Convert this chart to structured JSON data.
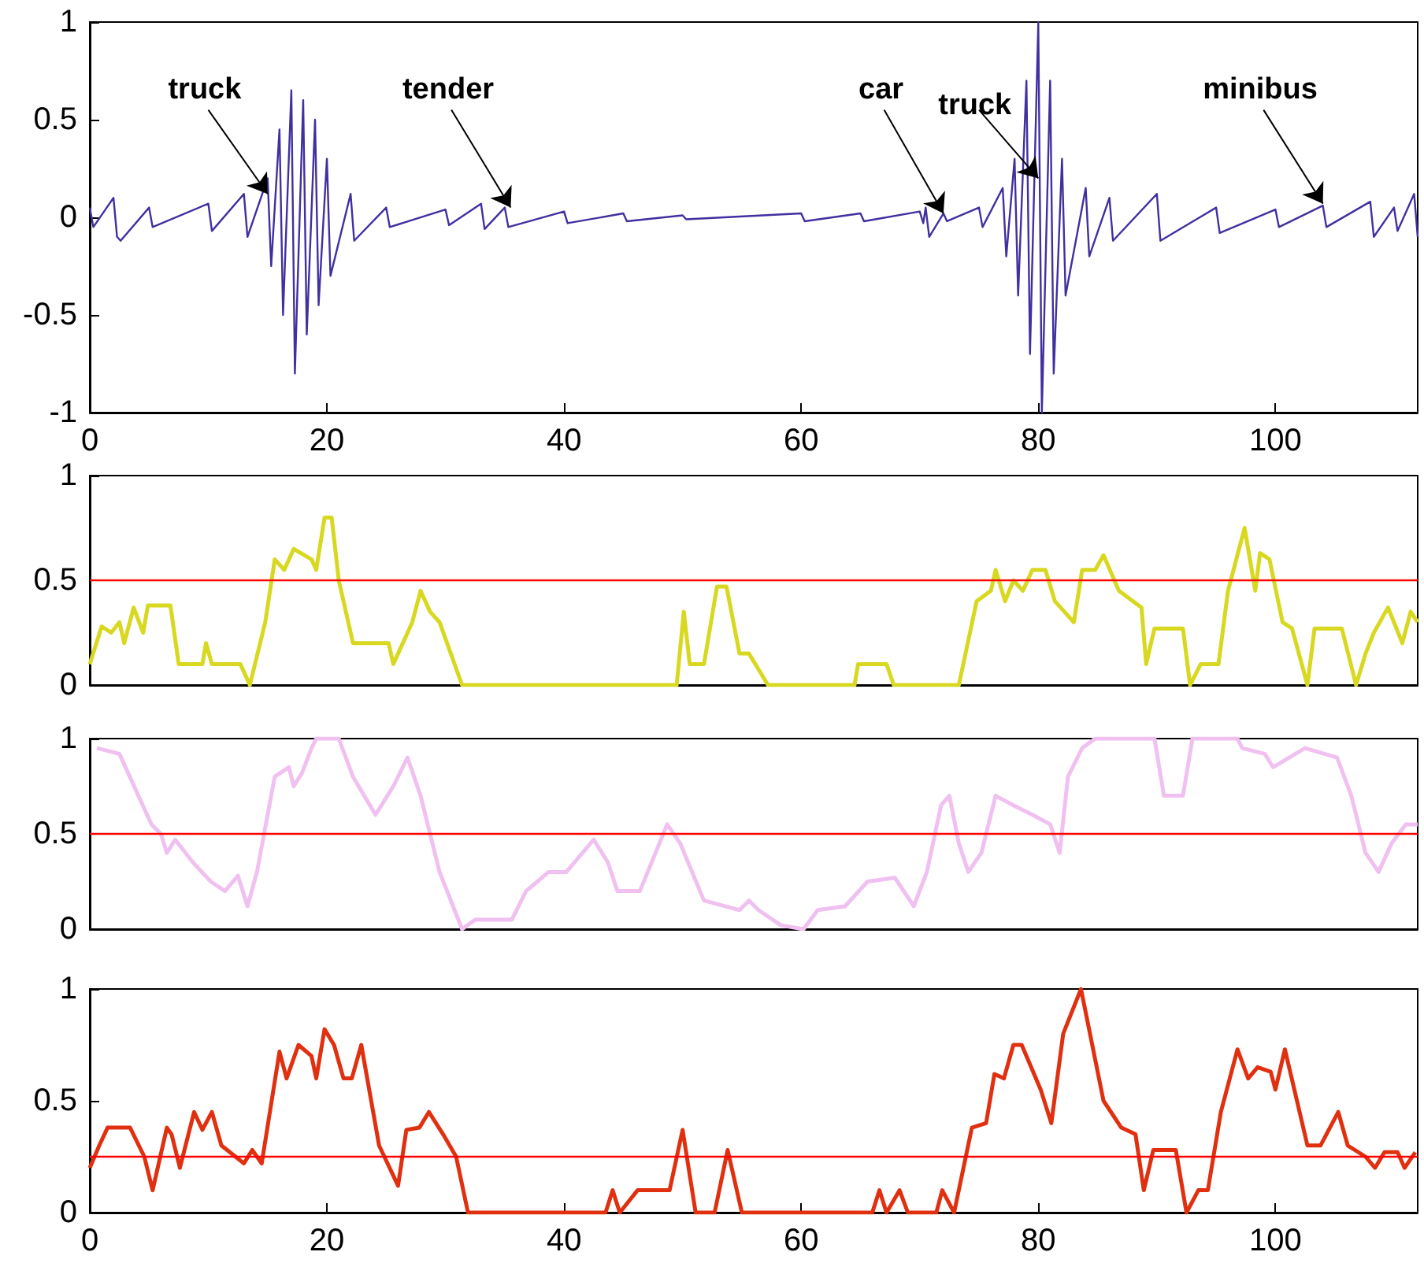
{
  "chart_data": [
    {
      "type": "line",
      "xlim": [
        0,
        112
      ],
      "xticks": [
        0,
        20,
        40,
        60,
        80,
        100
      ],
      "ylim": [
        -1,
        1
      ],
      "yticks": [
        -1,
        -0.5,
        0,
        0.5,
        1
      ],
      "series": [
        {
          "color": "#4030a0",
          "x": [
            0,
            0.3,
            2,
            2.3,
            2.6,
            5,
            5.3,
            10,
            10.3,
            13,
            13.3,
            15,
            15.3,
            16,
            16.3,
            17,
            17.3,
            18,
            18.3,
            19,
            19.3,
            20,
            20.3,
            22,
            22.3,
            25,
            25.3,
            30,
            30.3,
            33,
            33.3,
            35,
            35.3,
            40,
            40.3,
            45,
            45.3,
            50,
            50.3,
            60,
            60.3,
            65,
            65.3,
            70,
            70.3,
            70.5,
            70.8,
            72,
            72.3,
            75,
            75.3,
            77,
            77.3,
            78,
            78.3,
            79,
            79.3,
            80,
            80.3,
            81,
            81.3,
            82,
            82.3,
            84,
            84.3,
            86,
            86.3,
            90,
            90.3,
            95,
            95.3,
            100,
            100.3,
            104,
            104.3,
            108,
            108.3,
            110,
            110.3,
            111.7,
            112
          ],
          "values": [
            0.05,
            -0.05,
            0.1,
            -0.1,
            -0.12,
            0.05,
            -0.05,
            0.07,
            -0.07,
            0.12,
            -0.1,
            0.2,
            -0.25,
            0.45,
            -0.5,
            0.65,
            -0.8,
            0.6,
            -0.6,
            0.5,
            -0.45,
            0.3,
            -0.3,
            0.12,
            -0.12,
            0.05,
            -0.05,
            0.04,
            -0.04,
            0.07,
            -0.06,
            0.05,
            -0.05,
            0.03,
            -0.03,
            0.02,
            -0.02,
            0.01,
            -0.01,
            0.02,
            -0.02,
            0.02,
            -0.02,
            0.03,
            -0.03,
            0.05,
            -0.1,
            0.02,
            -0.02,
            0.05,
            -0.05,
            0.15,
            -0.2,
            0.3,
            -0.4,
            0.7,
            -0.7,
            1,
            -1,
            0.7,
            -0.8,
            0.3,
            -0.4,
            0.15,
            -0.2,
            0.1,
            -0.12,
            0.12,
            -0.12,
            0.05,
            -0.08,
            0.04,
            -0.05,
            0.06,
            -0.05,
            0.08,
            -0.1,
            0.05,
            -0.07,
            0.12,
            -0.1
          ]
        }
      ],
      "annotations": [
        {
          "text": "truck",
          "x": 15,
          "y": 0.12
        },
        {
          "text": "tender",
          "x": 35.5,
          "y": 0.05
        },
        {
          "text": "car",
          "x": 72,
          "y": 0.02
        },
        {
          "text": "truck",
          "x": 80,
          "y": 0.2
        },
        {
          "text": "minibus",
          "x": 104,
          "y": 0.07
        }
      ]
    },
    {
      "type": "line",
      "xlim": [
        0,
        112
      ],
      "ylim": [
        0,
        1
      ],
      "yticks": [
        0,
        0.5,
        1
      ],
      "tick_labels": "y",
      "ref_lines": [
        {
          "axis": "y",
          "value": 0.5,
          "color": "#ff0000"
        }
      ],
      "series": [
        {
          "color": "#d8d820",
          "x": [
            0,
            1,
            1.8,
            2.5,
            2.9,
            3.7,
            4.5,
            4.9,
            6.8,
            7.5,
            9.5,
            9.8,
            10.3,
            12.7,
            13.5,
            14.8,
            15.6,
            16.4,
            17.2,
            18.7,
            19.1,
            19.8,
            20.4,
            21,
            22.2,
            25.2,
            25.6,
            27.2,
            27.9,
            28.7,
            29.5,
            31.4,
            49.5,
            50.1,
            50.6,
            51.8,
            52.9,
            53.7,
            54.8,
            55.6,
            57.2,
            64.5,
            64.8,
            67.2,
            67.8,
            73.3,
            74.8,
            76,
            76.4,
            77.2,
            77.9,
            78.7,
            79.5,
            80.6,
            81.4,
            82.2,
            83,
            83.7,
            84.8,
            85.5,
            86.8,
            88.7,
            89.1,
            89.8,
            92.2,
            92.8,
            93.7,
            95.2,
            96,
            97.4,
            98.3,
            98.7,
            99.5,
            100.6,
            101.4,
            102.7,
            103.3,
            105.6,
            106.8,
            107.6,
            108.3,
            109.5,
            110.7,
            111.4,
            112
          ],
          "values": [
            0.1,
            0.28,
            0.25,
            0.3,
            0.2,
            0.37,
            0.25,
            0.38,
            0.38,
            0.1,
            0.1,
            0.2,
            0.1,
            0.1,
            0,
            0.3,
            0.6,
            0.55,
            0.65,
            0.6,
            0.55,
            0.8,
            0.8,
            0.5,
            0.2,
            0.2,
            0.1,
            0.3,
            0.45,
            0.35,
            0.3,
            0,
            0,
            0.35,
            0.1,
            0.1,
            0.47,
            0.47,
            0.15,
            0.15,
            0,
            0,
            0.1,
            0.1,
            0,
            0,
            0.4,
            0.45,
            0.55,
            0.4,
            0.5,
            0.45,
            0.55,
            0.55,
            0.4,
            0.35,
            0.3,
            0.55,
            0.55,
            0.62,
            0.45,
            0.37,
            0.1,
            0.27,
            0.27,
            0,
            0.1,
            0.1,
            0.45,
            0.75,
            0.45,
            0.63,
            0.6,
            0.3,
            0.27,
            0,
            0.27,
            0.27,
            0,
            0.15,
            0.25,
            0.37,
            0.2,
            0.35,
            0.3
          ]
        }
      ]
    },
    {
      "type": "line",
      "xlim": [
        0,
        112
      ],
      "ylim": [
        0,
        1
      ],
      "yticks": [
        0,
        0.5,
        1
      ],
      "tick_labels": "y",
      "ref_lines": [
        {
          "axis": "y",
          "value": 0.5,
          "color": "#ff0000"
        }
      ],
      "series": [
        {
          "color": "#f0c0f0",
          "x": [
            0.6,
            2.5,
            4.1,
            5.2,
            6,
            6.5,
            7.2,
            8.7,
            10.2,
            11.4,
            12.5,
            13.3,
            14.1,
            15.6,
            16.8,
            17.2,
            17.9,
            18.7,
            19.1,
            21,
            22.2,
            24.1,
            25.6,
            26.8,
            27.9,
            29.5,
            31.4,
            32.5,
            35.6,
            36.8,
            38.7,
            40.2,
            42.5,
            43.7,
            44.5,
            46.4,
            48.7,
            49.8,
            51.8,
            54.8,
            55.6,
            56.4,
            58.3,
            60.2,
            61.4,
            63.7,
            65.6,
            67.9,
            69.5,
            70.6,
            71.8,
            72.5,
            73.3,
            74.1,
            75.2,
            76.4,
            77.9,
            79.5,
            81,
            81.8,
            82.5,
            83.7,
            84.8,
            89.8,
            90.6,
            92.2,
            93,
            96.8,
            97.2,
            99.1,
            99.8,
            102.5,
            105.2,
            106.4,
            107.6,
            108.7,
            109.8,
            111,
            112
          ],
          "values": [
            0.95,
            0.92,
            0.7,
            0.55,
            0.5,
            0.4,
            0.47,
            0.35,
            0.25,
            0.2,
            0.28,
            0.12,
            0.3,
            0.8,
            0.85,
            0.75,
            0.82,
            0.95,
            1,
            1,
            0.8,
            0.6,
            0.75,
            0.9,
            0.7,
            0.3,
            0,
            0.05,
            0.05,
            0.2,
            0.3,
            0.3,
            0.47,
            0.35,
            0.2,
            0.2,
            0.55,
            0.45,
            0.15,
            0.1,
            0.15,
            0.1,
            0.02,
            0,
            0.1,
            0.12,
            0.25,
            0.27,
            0.12,
            0.3,
            0.65,
            0.7,
            0.45,
            0.3,
            0.4,
            0.7,
            0.65,
            0.6,
            0.55,
            0.4,
            0.8,
            0.95,
            1,
            1,
            0.7,
            0.7,
            1,
            1,
            0.95,
            0.92,
            0.85,
            0.95,
            0.9,
            0.7,
            0.4,
            0.3,
            0.45,
            0.55,
            0.55
          ]
        }
      ]
    },
    {
      "type": "line",
      "xlim": [
        0,
        112
      ],
      "xticks": [
        0,
        20,
        40,
        60,
        80,
        100
      ],
      "ylim": [
        0,
        1
      ],
      "yticks": [
        0,
        0.5,
        1
      ],
      "ref_lines": [
        {
          "axis": "y",
          "value": 0.25,
          "color": "#ff0000"
        }
      ],
      "series": [
        {
          "color": "#e03010",
          "x": [
            0,
            0.8,
            1.5,
            3.4,
            4.6,
            5.3,
            6.5,
            6.9,
            7.6,
            8.8,
            9.5,
            10.3,
            11.1,
            13,
            13.7,
            14.5,
            16,
            16.6,
            17.6,
            18.7,
            19.1,
            19.8,
            20.6,
            21.4,
            22.1,
            22.9,
            24.4,
            26,
            26.7,
            27.8,
            28.6,
            29.8,
            30.9,
            31.9,
            43.5,
            44.1,
            44.7,
            46.2,
            48.9,
            50,
            51.1,
            52.7,
            53.8,
            55,
            66,
            66.6,
            67.2,
            68.3,
            69,
            71.4,
            71.9,
            72.9,
            74.4,
            75.6,
            76.3,
            77.1,
            77.9,
            78.6,
            80.2,
            81.1,
            82.1,
            83.6,
            85.5,
            87,
            88.2,
            88.9,
            89.7,
            91.6,
            92.5,
            93.5,
            94.3,
            95.4,
            96.8,
            97.7,
            98.5,
            99.6,
            100,
            100.8,
            102.7,
            103.8,
            105.3,
            106.1,
            107.6,
            108.4,
            109.2,
            110.3,
            110.9,
            111.8
          ],
          "values": [
            0.2,
            0.3,
            0.38,
            0.38,
            0.25,
            0.1,
            0.38,
            0.35,
            0.2,
            0.45,
            0.37,
            0.45,
            0.3,
            0.22,
            0.28,
            0.22,
            0.72,
            0.6,
            0.75,
            0.7,
            0.6,
            0.82,
            0.75,
            0.6,
            0.6,
            0.75,
            0.3,
            0.12,
            0.37,
            0.38,
            0.45,
            0.35,
            0.25,
            0,
            0,
            0.1,
            0,
            0.1,
            0.1,
            0.37,
            0,
            0,
            0.28,
            0,
            0,
            0.1,
            0,
            0.1,
            0,
            0,
            0.1,
            0,
            0.38,
            0.4,
            0.62,
            0.6,
            0.75,
            0.75,
            0.55,
            0.4,
            0.8,
            1,
            0.5,
            0.38,
            0.35,
            0.1,
            0.28,
            0.28,
            0,
            0.1,
            0.1,
            0.45,
            0.73,
            0.6,
            0.65,
            0.63,
            0.55,
            0.73,
            0.3,
            0.3,
            0.45,
            0.3,
            0.25,
            0.2,
            0.27,
            0.27,
            0.2,
            0.27
          ]
        }
      ]
    }
  ]
}
